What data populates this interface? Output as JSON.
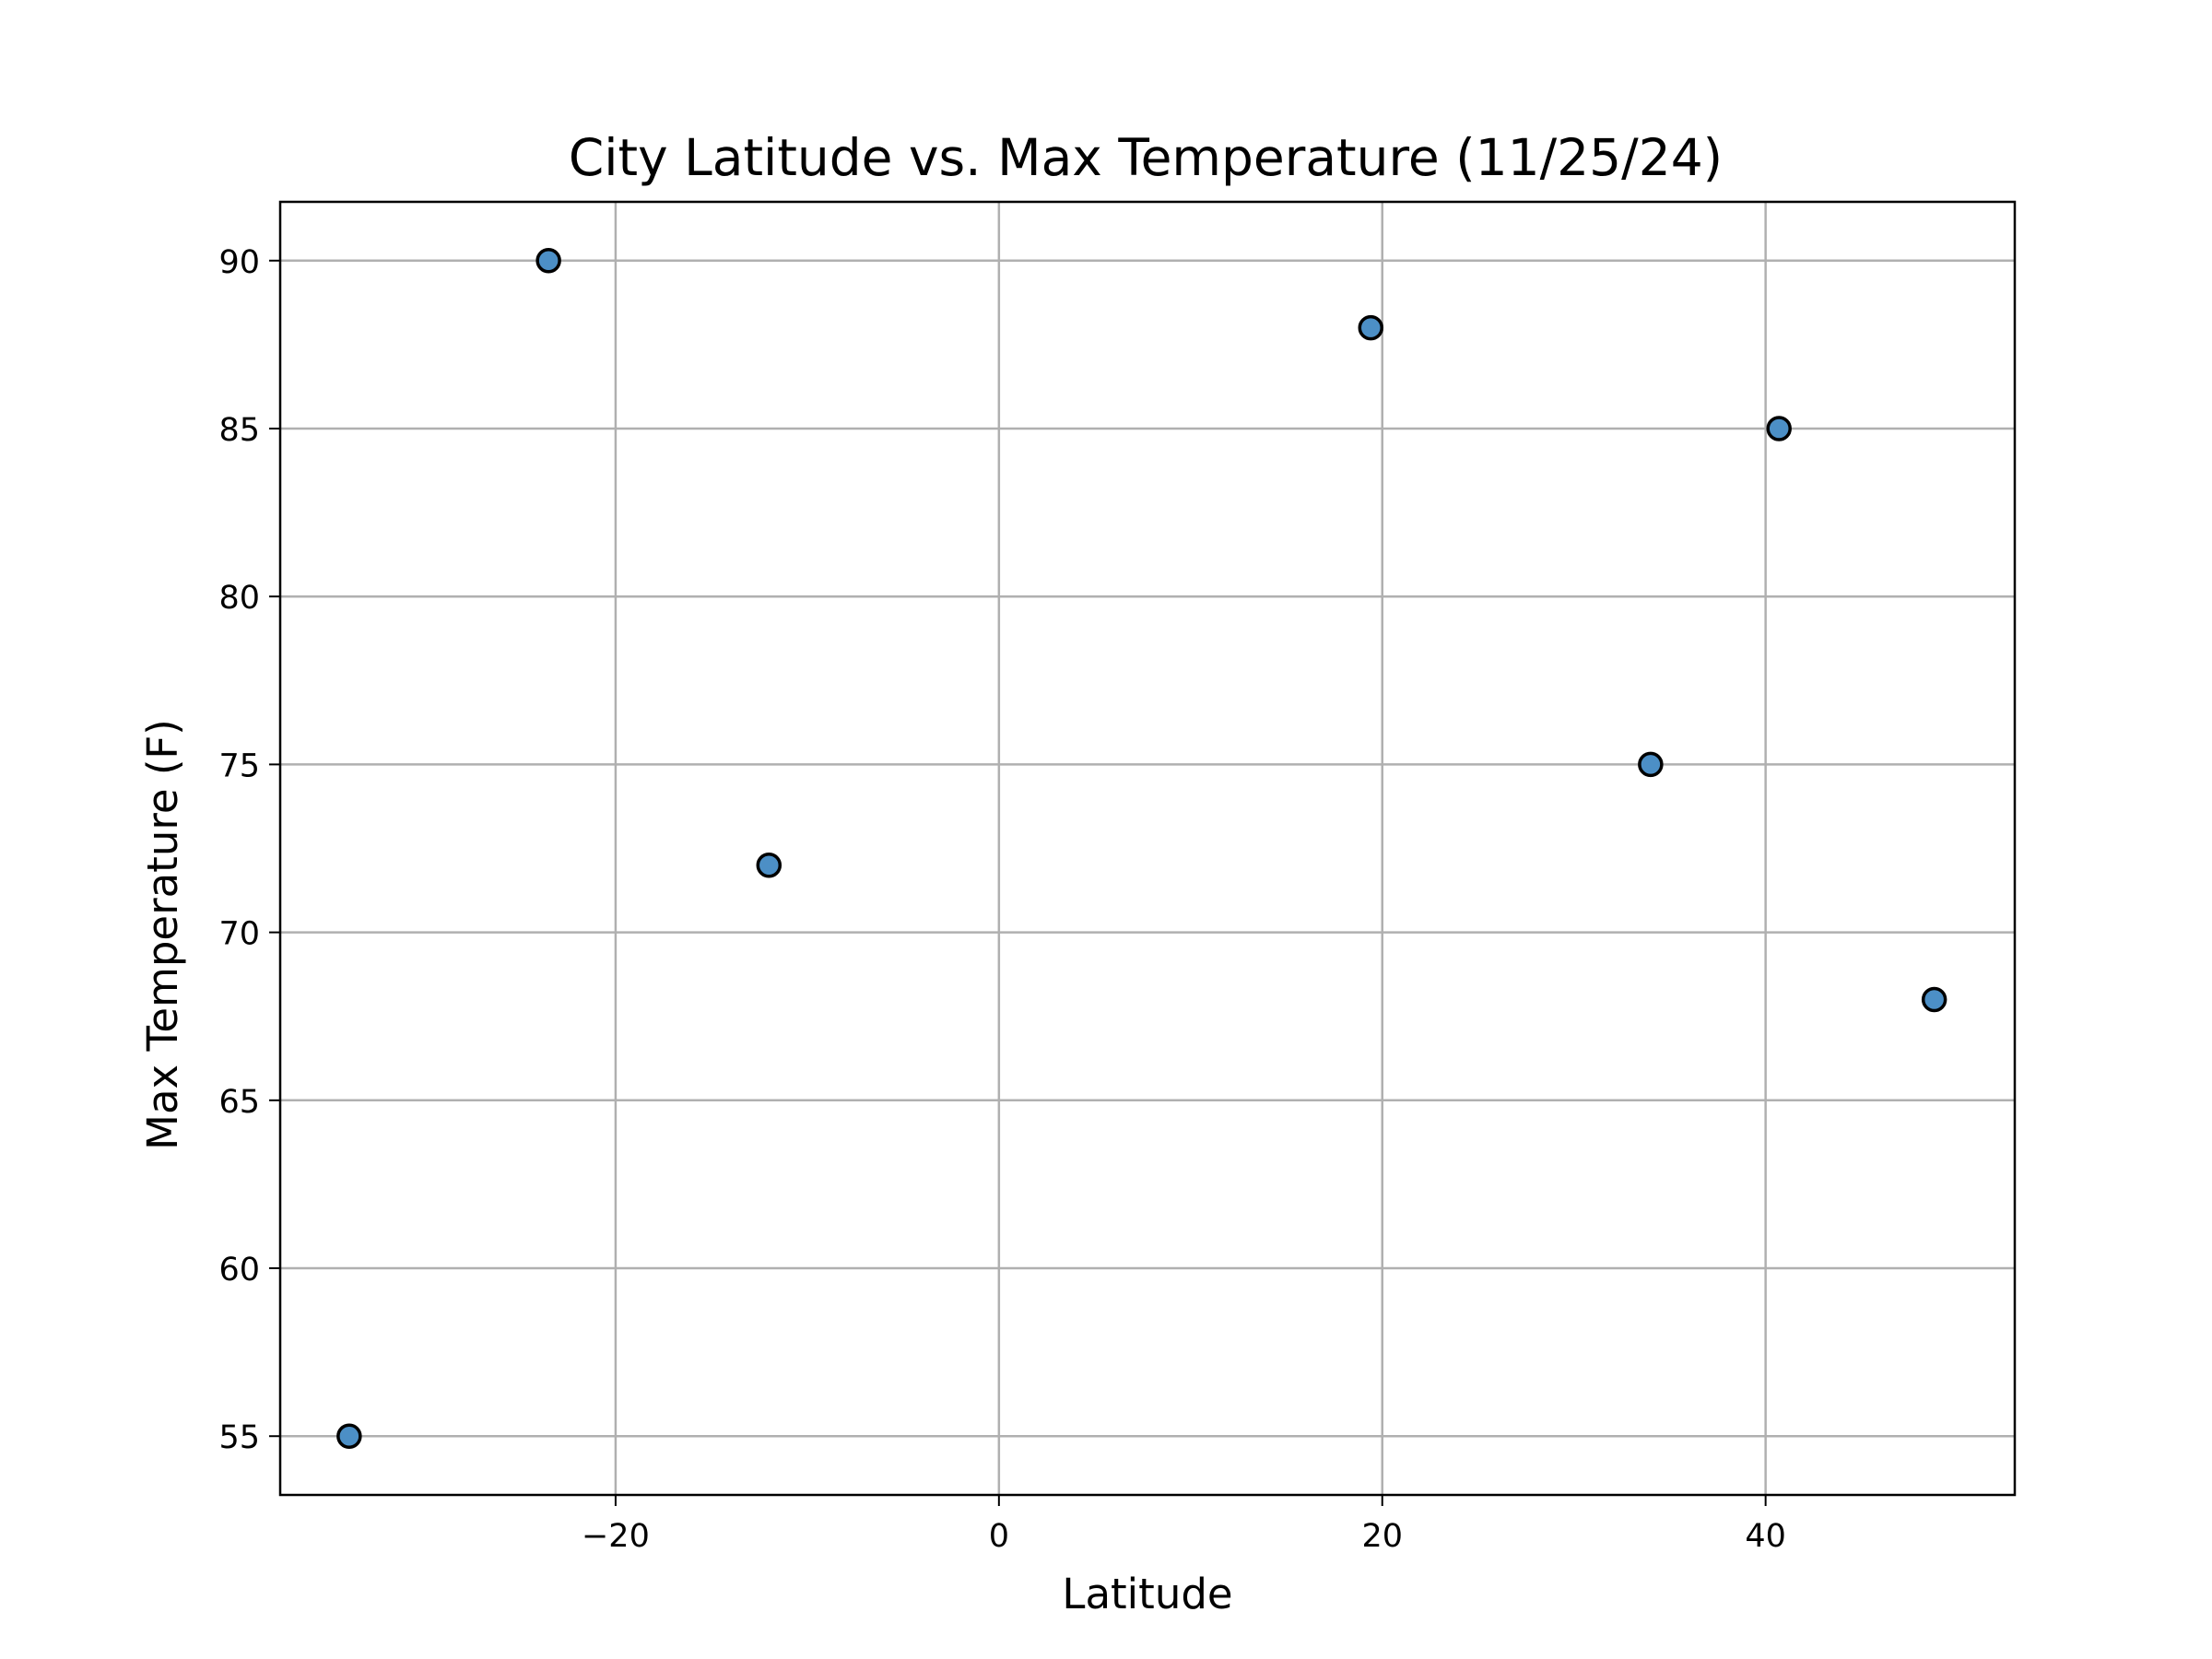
{
  "chart_data": {
    "type": "scatter",
    "title": "City Latitude vs. Max Temperature (11/25/24)",
    "xlabel": "Latitude",
    "ylabel": "Max Temperature (F)",
    "xlim": [
      -37.5,
      53
    ],
    "ylim": [
      53.25,
      91.75
    ],
    "xticks": [
      -20,
      0,
      20,
      40
    ],
    "xtick_labels": [
      "−20",
      "0",
      "20",
      "40"
    ],
    "yticks": [
      55,
      60,
      65,
      70,
      75,
      80,
      85,
      90
    ],
    "ytick_labels": [
      "55",
      "60",
      "65",
      "70",
      "75",
      "80",
      "85",
      "90"
    ],
    "grid": true,
    "marker_color": "#4c8fc6",
    "marker_edge_color": "#000000",
    "points": [
      {
        "x": -33.9,
        "y": 55
      },
      {
        "x": -23.5,
        "y": 90
      },
      {
        "x": -12.0,
        "y": 72
      },
      {
        "x": 19.4,
        "y": 88
      },
      {
        "x": 34.0,
        "y": 75
      },
      {
        "x": 40.7,
        "y": 85
      },
      {
        "x": 48.8,
        "y": 68
      }
    ]
  }
}
